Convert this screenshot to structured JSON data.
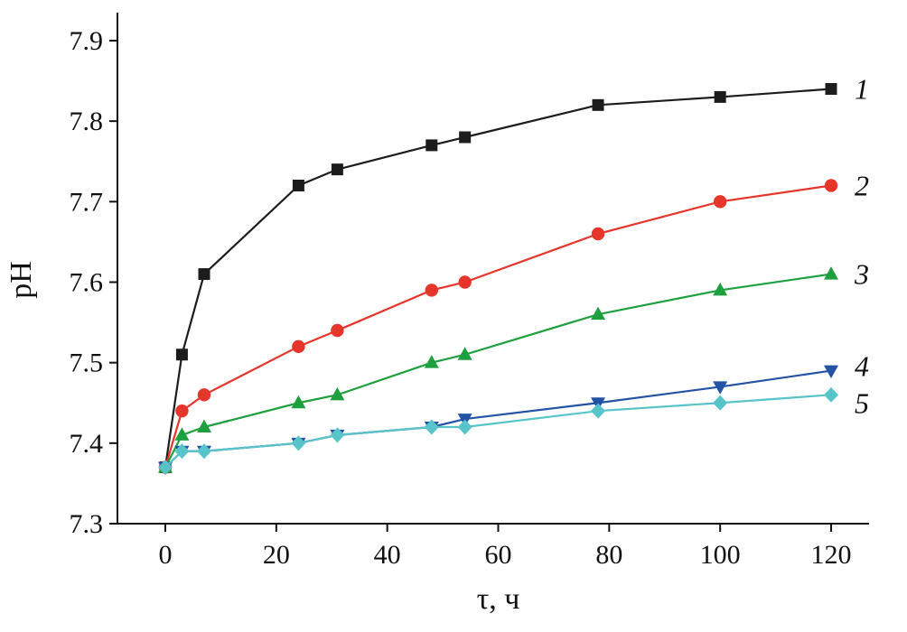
{
  "chart_data": {
    "type": "line",
    "title": "",
    "xlabel": "τ, ч",
    "ylabel": "pH",
    "xlim": [
      0,
      120
    ],
    "ylim": [
      7.3,
      7.9
    ],
    "x_ticks": [
      0,
      20,
      40,
      60,
      80,
      100,
      120
    ],
    "y_ticks": [
      7.3,
      7.4,
      7.5,
      7.6,
      7.7,
      7.8,
      7.9
    ],
    "grid": false,
    "legend_position": "inline-right",
    "x": [
      0,
      3,
      7,
      24,
      31,
      48,
      54,
      78,
      100,
      120
    ],
    "series": [
      {
        "name": "1",
        "marker": "square",
        "color": "#1c1c1c",
        "values": [
          7.37,
          7.51,
          7.61,
          7.72,
          7.74,
          7.77,
          7.78,
          7.82,
          7.83,
          7.84
        ]
      },
      {
        "name": "2",
        "marker": "circle",
        "color": "#e6352b",
        "values": [
          7.37,
          7.44,
          7.46,
          7.52,
          7.54,
          7.59,
          7.6,
          7.66,
          7.7,
          7.72
        ]
      },
      {
        "name": "3",
        "marker": "triangle-up",
        "color": "#1ea03f",
        "values": [
          7.37,
          7.41,
          7.42,
          7.45,
          7.46,
          7.5,
          7.51,
          7.56,
          7.59,
          7.61
        ]
      },
      {
        "name": "4",
        "marker": "triangle-down",
        "color": "#2353a5",
        "values": [
          7.37,
          7.39,
          7.39,
          7.4,
          7.41,
          7.42,
          7.43,
          7.45,
          7.47,
          7.49
        ]
      },
      {
        "name": "5",
        "marker": "diamond",
        "color": "#57c4ca",
        "values": [
          7.37,
          7.39,
          7.39,
          7.4,
          7.41,
          7.42,
          7.42,
          7.44,
          7.45,
          7.46
        ]
      }
    ]
  }
}
